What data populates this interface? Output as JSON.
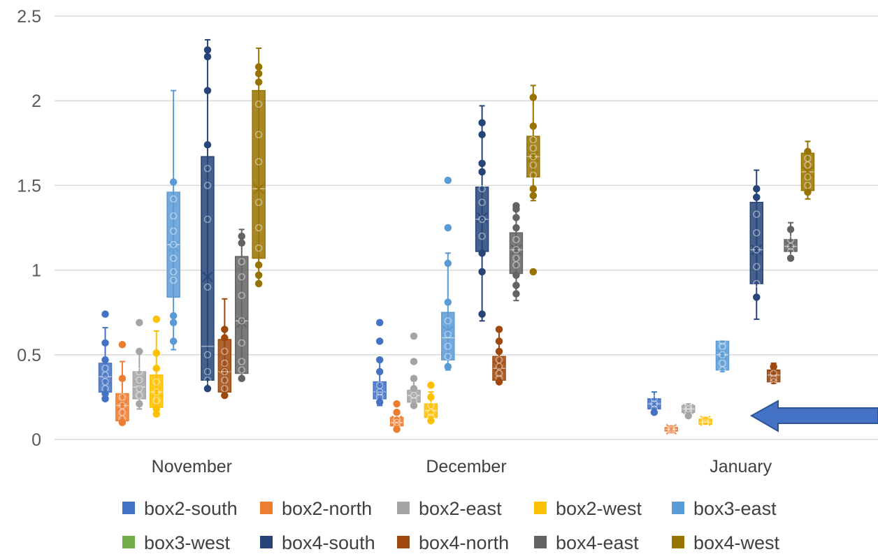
{
  "chart_data": {
    "type": "box",
    "title": "",
    "xlabel": "",
    "ylabel": "",
    "ylim": [
      0,
      2.5
    ],
    "yticks": [
      "0",
      "0.5",
      "1",
      "1.5",
      "2",
      "2.5"
    ],
    "grid": "horizontal",
    "legend_position": "bottom",
    "categories": [
      "November",
      "December",
      "January"
    ],
    "series": [
      {
        "name": "box2-south",
        "color": "#4472C4",
        "stats": [
          {
            "min": 0.23,
            "q1": 0.28,
            "median": 0.37,
            "q3": 0.45,
            "max": 0.66,
            "mean": 0.36,
            "points": [
              0.74,
              0.57,
              0.47,
              0.42,
              0.38,
              0.34,
              0.3,
              0.27,
              0.24
            ]
          },
          {
            "min": 0.2,
            "q1": 0.24,
            "median": 0.28,
            "q3": 0.34,
            "max": 0.48,
            "mean": 0.3,
            "points": [
              0.69,
              0.58,
              0.47,
              0.4,
              0.32,
              0.28,
              0.25,
              0.22
            ]
          },
          {
            "min": 0.16,
            "q1": 0.18,
            "median": 0.21,
            "q3": 0.24,
            "max": 0.28,
            "mean": 0.21,
            "points": [
              0.24,
              0.21,
              0.18,
              0.16
            ]
          }
        ]
      },
      {
        "name": "box2-north",
        "color": "#ED7D31",
        "stats": [
          {
            "min": 0.09,
            "q1": 0.11,
            "median": 0.2,
            "q3": 0.27,
            "max": 0.46,
            "mean": 0.2,
            "points": [
              0.56,
              0.36,
              0.25,
              0.2,
              0.16,
              0.12,
              0.1
            ]
          },
          {
            "min": 0.06,
            "q1": 0.08,
            "median": 0.1,
            "q3": 0.13,
            "max": 0.17,
            "mean": 0.11,
            "points": [
              0.21,
              0.16,
              0.12,
              0.1,
              0.08,
              0.06
            ]
          },
          {
            "min": 0.04,
            "q1": 0.05,
            "median": 0.06,
            "q3": 0.07,
            "max": 0.08,
            "mean": 0.06,
            "points": [
              0.07,
              0.06,
              0.05
            ]
          }
        ]
      },
      {
        "name": "box2-east",
        "color": "#A5A5A5",
        "stats": [
          {
            "min": 0.18,
            "q1": 0.24,
            "median": 0.31,
            "q3": 0.4,
            "max": 0.52,
            "mean": 0.32,
            "points": [
              0.69,
              0.52,
              0.4,
              0.35,
              0.3,
              0.26,
              0.21
            ]
          },
          {
            "min": 0.19,
            "q1": 0.22,
            "median": 0.26,
            "q3": 0.29,
            "max": 0.35,
            "mean": 0.25,
            "points": [
              0.61,
              0.46,
              0.36,
              0.3,
              0.26,
              0.23,
              0.2
            ]
          },
          {
            "min": 0.14,
            "q1": 0.16,
            "median": 0.18,
            "q3": 0.2,
            "max": 0.21,
            "mean": 0.18,
            "points": [
              0.2,
              0.18,
              0.16,
              0.14
            ]
          }
        ]
      },
      {
        "name": "box2-west",
        "color": "#FFC000",
        "stats": [
          {
            "min": 0.14,
            "q1": 0.19,
            "median": 0.28,
            "q3": 0.38,
            "max": 0.64,
            "mean": 0.28,
            "points": [
              0.71,
              0.51,
              0.42,
              0.34,
              0.28,
              0.23,
              0.18,
              0.15
            ]
          },
          {
            "min": 0.11,
            "q1": 0.13,
            "median": 0.17,
            "q3": 0.21,
            "max": 0.28,
            "mean": 0.17,
            "points": [
              0.32,
              0.25,
              0.2,
              0.16,
              0.13,
              0.11
            ]
          },
          {
            "min": 0.09,
            "q1": 0.09,
            "median": 0.1,
            "q3": 0.12,
            "max": 0.13,
            "mean": 0.11,
            "points": [
              0.12,
              0.1,
              0.09
            ]
          }
        ]
      },
      {
        "name": "box3-east",
        "color": "#5B9BD5",
        "stats": [
          {
            "min": 0.53,
            "q1": 0.84,
            "median": 1.15,
            "q3": 1.46,
            "max": 2.06,
            "mean": 1.14,
            "points": [
              1.52,
              1.42,
              1.32,
              1.23,
              1.15,
              1.07,
              0.99,
              0.94,
              0.73,
              0.69,
              0.58
            ]
          },
          {
            "min": 0.41,
            "q1": 0.47,
            "median": 0.6,
            "q3": 0.75,
            "max": 1.1,
            "mean": 0.64,
            "points": [
              1.53,
              1.25,
              1.04,
              0.81,
              0.7,
              0.62,
              0.55,
              0.49,
              0.43
            ]
          },
          {
            "min": 0.4,
            "q1": 0.41,
            "median": 0.5,
            "q3": 0.58,
            "max": 0.58,
            "mean": 0.5,
            "points": [
              0.58,
              0.55,
              0.5,
              0.45,
              0.41
            ]
          }
        ]
      },
      {
        "name": "box3-west",
        "color": "#70AD47",
        "stats": [
          null,
          null,
          null
        ]
      },
      {
        "name": "box4-south",
        "color": "#264478",
        "stats": [
          {
            "min": 0.3,
            "q1": 0.35,
            "median": 0.55,
            "q3": 1.67,
            "max": 2.36,
            "mean": 0.96,
            "points": [
              2.3,
              2.26,
              2.06,
              1.74,
              1.6,
              1.5,
              1.3,
              0.9,
              0.5,
              0.4,
              0.35,
              0.3
            ]
          },
          {
            "min": 0.7,
            "q1": 1.11,
            "median": 1.3,
            "q3": 1.49,
            "max": 1.97,
            "mean": 1.31,
            "points": [
              1.87,
              1.8,
              1.63,
              1.58,
              1.48,
              1.4,
              1.3,
              1.2,
              1.1,
              0.99,
              0.74
            ]
          },
          {
            "min": 0.71,
            "q1": 0.92,
            "median": 1.12,
            "q3": 1.4,
            "max": 1.59,
            "mean": 1.12,
            "points": [
              1.48,
              1.43,
              1.33,
              1.22,
              1.12,
              1.02,
              0.92,
              0.84
            ]
          }
        ]
      },
      {
        "name": "box4-north",
        "color": "#9E480E",
        "stats": [
          {
            "min": 0.26,
            "q1": 0.28,
            "median": 0.4,
            "q3": 0.59,
            "max": 0.83,
            "mean": 0.43,
            "points": [
              0.65,
              0.6,
              0.52,
              0.45,
              0.4,
              0.35,
              0.3,
              0.26
            ]
          },
          {
            "min": 0.34,
            "q1": 0.35,
            "median": 0.42,
            "q3": 0.49,
            "max": 0.65,
            "mean": 0.43,
            "points": [
              0.65,
              0.58,
              0.52,
              0.47,
              0.43,
              0.39,
              0.36,
              0.34
            ]
          },
          {
            "min": 0.33,
            "q1": 0.34,
            "median": 0.38,
            "q3": 0.41,
            "max": 0.45,
            "mean": 0.38,
            "points": [
              0.43,
              0.39,
              0.36,
              0.34
            ]
          }
        ]
      },
      {
        "name": "box4-east",
        "color": "#636363",
        "stats": [
          {
            "min": 0.36,
            "q1": 0.39,
            "median": 0.7,
            "q3": 1.08,
            "max": 1.24,
            "mean": 0.69,
            "points": [
              1.2,
              1.16,
              1.05,
              0.96,
              0.85,
              0.7,
              0.57,
              0.46,
              0.41,
              0.36
            ]
          },
          {
            "min": 0.82,
            "q1": 0.98,
            "median": 1.12,
            "q3": 1.22,
            "max": 1.38,
            "mean": 1.12,
            "points": [
              1.38,
              1.36,
              1.31,
              1.25,
              1.18,
              1.12,
              1.07,
              1.03,
              0.97,
              0.91,
              0.86
            ]
          },
          {
            "min": 1.07,
            "q1": 1.11,
            "median": 1.14,
            "q3": 1.18,
            "max": 1.28,
            "mean": 1.14,
            "points": [
              1.24,
              1.18,
              1.14,
              1.11,
              1.07
            ]
          }
        ]
      },
      {
        "name": "box4-west",
        "color": "#997300",
        "stats": [
          {
            "min": 0.92,
            "q1": 1.07,
            "median": 1.48,
            "q3": 2.06,
            "max": 2.31,
            "mean": 1.48,
            "points": [
              2.2,
              2.16,
              2.11,
              1.98,
              1.8,
              1.64,
              1.4,
              1.25,
              1.13,
              1.03,
              0.97,
              0.92
            ]
          },
          {
            "min": 1.41,
            "q1": 1.55,
            "median": 1.67,
            "q3": 1.79,
            "max": 2.09,
            "mean": 1.67,
            "points": [
              2.02,
              1.85,
              1.77,
              1.72,
              1.67,
              1.62,
              1.56,
              1.48,
              1.44,
              0.99
            ]
          },
          {
            "min": 1.42,
            "q1": 1.47,
            "median": 1.58,
            "q3": 1.69,
            "max": 1.76,
            "mean": 1.58,
            "points": [
              1.7,
              1.66,
              1.62,
              1.55,
              1.5,
              1.46
            ]
          }
        ]
      }
    ],
    "annotation": {
      "type": "arrow",
      "direction": "left",
      "color": "#4472C4",
      "target": {
        "category": "January",
        "series": "box2-west"
      }
    }
  }
}
